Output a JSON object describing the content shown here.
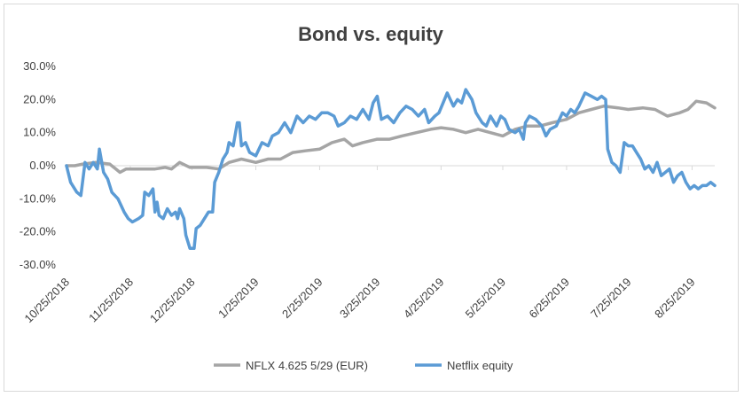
{
  "chart_data": {
    "type": "line",
    "title": "Bond vs. equity",
    "xlabel": "",
    "ylabel": "",
    "x_tick_labels": [
      "10/25/2018",
      "11/25/2018",
      "12/25/2018",
      "1/25/2019",
      "2/25/2019",
      "3/25/2019",
      "4/25/2019",
      "5/25/2019",
      "6/25/2019",
      "7/25/2019",
      "8/25/2019"
    ],
    "y_tick_labels": [
      "30.0%",
      "20.0%",
      "10.0%",
      "0.0%",
      "-10.0%",
      "-20.0%",
      "-30.0%"
    ],
    "ylim": [
      -30,
      30
    ],
    "xlim": [
      "2018-10-25",
      "2019-09-05"
    ],
    "grid": false,
    "legend": "bottom",
    "series": [
      {
        "name": "NFLX 4.625 5/29 (EUR)",
        "color": "#a5a5a5",
        "points": [
          [
            "2018-10-25",
            0
          ],
          [
            "2018-10-29",
            0
          ],
          [
            "2018-11-02",
            0.5
          ],
          [
            "2018-11-08",
            1
          ],
          [
            "2018-11-15",
            0.5
          ],
          [
            "2018-11-20",
            -2
          ],
          [
            "2018-11-23",
            -1
          ],
          [
            "2018-12-01",
            -1
          ],
          [
            "2018-12-07",
            -1
          ],
          [
            "2018-12-12",
            -0.5
          ],
          [
            "2018-12-15",
            -1
          ],
          [
            "2018-12-19",
            1
          ],
          [
            "2018-12-24",
            -0.5
          ],
          [
            "2019-01-01",
            -0.5
          ],
          [
            "2019-01-07",
            -1
          ],
          [
            "2019-01-12",
            1
          ],
          [
            "2019-01-18",
            2
          ],
          [
            "2019-01-25",
            1
          ],
          [
            "2019-01-31",
            2
          ],
          [
            "2019-02-06",
            2
          ],
          [
            "2019-02-12",
            4
          ],
          [
            "2019-02-18",
            4.5
          ],
          [
            "2019-02-25",
            5
          ],
          [
            "2019-03-03",
            7
          ],
          [
            "2019-03-09",
            8
          ],
          [
            "2019-03-13",
            6
          ],
          [
            "2019-03-18",
            7
          ],
          [
            "2019-03-25",
            8
          ],
          [
            "2019-03-31",
            8
          ],
          [
            "2019-04-06",
            9
          ],
          [
            "2019-04-13",
            10
          ],
          [
            "2019-04-20",
            11
          ],
          [
            "2019-04-25",
            11.5
          ],
          [
            "2019-05-01",
            11
          ],
          [
            "2019-05-07",
            10
          ],
          [
            "2019-05-13",
            11
          ],
          [
            "2019-05-19",
            10
          ],
          [
            "2019-05-25",
            9
          ],
          [
            "2019-05-31",
            11
          ],
          [
            "2019-06-06",
            12
          ],
          [
            "2019-06-12",
            12
          ],
          [
            "2019-06-18",
            13
          ],
          [
            "2019-06-25",
            14
          ],
          [
            "2019-07-01",
            16
          ],
          [
            "2019-07-07",
            17
          ],
          [
            "2019-07-13",
            18
          ],
          [
            "2019-07-20",
            17.5
          ],
          [
            "2019-07-25",
            17
          ],
          [
            "2019-08-01",
            17.5
          ],
          [
            "2019-08-07",
            17
          ],
          [
            "2019-08-13",
            15
          ],
          [
            "2019-08-19",
            16
          ],
          [
            "2019-08-23",
            17
          ],
          [
            "2019-08-27",
            19.5
          ],
          [
            "2019-09-01",
            19
          ],
          [
            "2019-09-05",
            17.5
          ]
        ]
      },
      {
        "name": "Netflix equity",
        "color": "#5b9bd5",
        "points": [
          [
            "2018-10-25",
            0
          ],
          [
            "2018-10-27",
            -5
          ],
          [
            "2018-10-30",
            -8
          ],
          [
            "2018-11-01",
            -9
          ],
          [
            "2018-11-03",
            1
          ],
          [
            "2018-11-05",
            -1
          ],
          [
            "2018-11-07",
            1
          ],
          [
            "2018-11-09",
            -1
          ],
          [
            "2018-11-10",
            5
          ],
          [
            "2018-11-12",
            -2
          ],
          [
            "2018-11-14",
            -4
          ],
          [
            "2018-11-16",
            -8
          ],
          [
            "2018-11-19",
            -10
          ],
          [
            "2018-11-22",
            -14
          ],
          [
            "2018-11-24",
            -16
          ],
          [
            "2018-11-26",
            -17
          ],
          [
            "2018-11-29",
            -16
          ],
          [
            "2018-12-01",
            -15
          ],
          [
            "2018-12-02",
            -8
          ],
          [
            "2018-12-04",
            -9
          ],
          [
            "2018-12-06",
            -7
          ],
          [
            "2018-12-07",
            -14
          ],
          [
            "2018-12-08",
            -11
          ],
          [
            "2018-12-09",
            -15
          ],
          [
            "2018-12-11",
            -16
          ],
          [
            "2018-12-13",
            -13
          ],
          [
            "2018-12-15",
            -15
          ],
          [
            "2018-12-17",
            -14
          ],
          [
            "2018-12-18",
            -16
          ],
          [
            "2018-12-19",
            -13
          ],
          [
            "2018-12-21",
            -16
          ],
          [
            "2018-12-22",
            -21
          ],
          [
            "2018-12-24",
            -25
          ],
          [
            "2018-12-26",
            -25
          ],
          [
            "2018-12-27",
            -19
          ],
          [
            "2018-12-29",
            -18
          ],
          [
            "2018-12-31",
            -16
          ],
          [
            "2019-01-02",
            -14
          ],
          [
            "2019-01-04",
            -14
          ],
          [
            "2019-01-05",
            -5
          ],
          [
            "2019-01-07",
            -2
          ],
          [
            "2019-01-09",
            2
          ],
          [
            "2019-01-11",
            4
          ],
          [
            "2019-01-12",
            7
          ],
          [
            "2019-01-14",
            6
          ],
          [
            "2019-01-16",
            13
          ],
          [
            "2019-01-17",
            13
          ],
          [
            "2019-01-18",
            6
          ],
          [
            "2019-01-20",
            7
          ],
          [
            "2019-01-22",
            4
          ],
          [
            "2019-01-25",
            3
          ],
          [
            "2019-01-28",
            7
          ],
          [
            "2019-01-31",
            6
          ],
          [
            "2019-02-02",
            9
          ],
          [
            "2019-02-05",
            10
          ],
          [
            "2019-02-08",
            13
          ],
          [
            "2019-02-11",
            10
          ],
          [
            "2019-02-14",
            15
          ],
          [
            "2019-02-17",
            13
          ],
          [
            "2019-02-20",
            15
          ],
          [
            "2019-02-23",
            14
          ],
          [
            "2019-02-26",
            16
          ],
          [
            "2019-03-01",
            16
          ],
          [
            "2019-03-04",
            15
          ],
          [
            "2019-03-06",
            12
          ],
          [
            "2019-03-09",
            13
          ],
          [
            "2019-03-12",
            15
          ],
          [
            "2019-03-15",
            14
          ],
          [
            "2019-03-18",
            17
          ],
          [
            "2019-03-21",
            14
          ],
          [
            "2019-03-23",
            19
          ],
          [
            "2019-03-25",
            21
          ],
          [
            "2019-03-27",
            14
          ],
          [
            "2019-03-30",
            15
          ],
          [
            "2019-04-02",
            13
          ],
          [
            "2019-04-05",
            16
          ],
          [
            "2019-04-08",
            18
          ],
          [
            "2019-04-11",
            17
          ],
          [
            "2019-04-14",
            15
          ],
          [
            "2019-04-17",
            17
          ],
          [
            "2019-04-19",
            13
          ],
          [
            "2019-04-22",
            15
          ],
          [
            "2019-04-24",
            16
          ],
          [
            "2019-04-26",
            19
          ],
          [
            "2019-04-28",
            22
          ],
          [
            "2019-05-01",
            18
          ],
          [
            "2019-05-03",
            20
          ],
          [
            "2019-05-05",
            19
          ],
          [
            "2019-05-07",
            23
          ],
          [
            "2019-05-10",
            20
          ],
          [
            "2019-05-12",
            16
          ],
          [
            "2019-05-15",
            13
          ],
          [
            "2019-05-17",
            12
          ],
          [
            "2019-05-19",
            15
          ],
          [
            "2019-05-22",
            12
          ],
          [
            "2019-05-24",
            15
          ],
          [
            "2019-05-26",
            14
          ],
          [
            "2019-05-28",
            11
          ],
          [
            "2019-05-31",
            10
          ],
          [
            "2019-06-02",
            11
          ],
          [
            "2019-06-04",
            8
          ],
          [
            "2019-06-05",
            13
          ],
          [
            "2019-06-07",
            15
          ],
          [
            "2019-06-10",
            14
          ],
          [
            "2019-06-13",
            12
          ],
          [
            "2019-06-15",
            9
          ],
          [
            "2019-06-17",
            11
          ],
          [
            "2019-06-20",
            12
          ],
          [
            "2019-06-23",
            16
          ],
          [
            "2019-06-25",
            15
          ],
          [
            "2019-06-27",
            17
          ],
          [
            "2019-06-29",
            16
          ],
          [
            "2019-07-01",
            18
          ],
          [
            "2019-07-04",
            22
          ],
          [
            "2019-07-07",
            21
          ],
          [
            "2019-07-10",
            20
          ],
          [
            "2019-07-12",
            21
          ],
          [
            "2019-07-14",
            20
          ],
          [
            "2019-07-15",
            5
          ],
          [
            "2019-07-17",
            1
          ],
          [
            "2019-07-19",
            0
          ],
          [
            "2019-07-21",
            -2
          ],
          [
            "2019-07-23",
            7
          ],
          [
            "2019-07-25",
            6
          ],
          [
            "2019-07-27",
            6
          ],
          [
            "2019-07-29",
            4
          ],
          [
            "2019-07-31",
            2
          ],
          [
            "2019-08-02",
            -1
          ],
          [
            "2019-08-04",
            0
          ],
          [
            "2019-08-06",
            -2
          ],
          [
            "2019-08-08",
            1
          ],
          [
            "2019-08-10",
            -3
          ],
          [
            "2019-08-12",
            -2
          ],
          [
            "2019-08-14",
            -1
          ],
          [
            "2019-08-16",
            -5
          ],
          [
            "2019-08-18",
            -3
          ],
          [
            "2019-08-20",
            -2
          ],
          [
            "2019-08-22",
            -5
          ],
          [
            "2019-08-24",
            -7
          ],
          [
            "2019-08-26",
            -6
          ],
          [
            "2019-08-28",
            -7
          ],
          [
            "2019-08-30",
            -6
          ],
          [
            "2019-09-01",
            -6
          ],
          [
            "2019-09-03",
            -5
          ],
          [
            "2019-09-05",
            -6
          ]
        ]
      }
    ]
  }
}
